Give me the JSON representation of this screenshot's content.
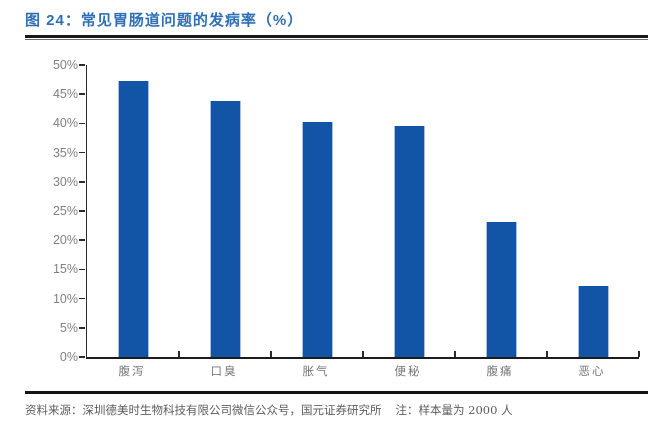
{
  "header": {
    "title": "图 24：常见胃肠道问题的发病率（%）"
  },
  "footer": {
    "source": "资料来源：深圳德美时生物科技有限公司微信公众号，国元证券研究所",
    "note": "注：样本量为 2000 人"
  },
  "colors": {
    "title_blue": "#2f6fb3",
    "bar_blue": "#1254a6",
    "bar_edge": "#aabfdd",
    "axis_dark": "#1c1c1c",
    "tick_label_gray": "#808080",
    "category_label_gray": "#767676",
    "footer_gray": "#5c5c5c"
  },
  "chart_data": {
    "type": "bar",
    "title": "常见胃肠道问题的发病率（%）",
    "categories": [
      "腹泻",
      "口臭",
      "胀气",
      "便秘",
      "腹痛",
      "恶心"
    ],
    "values": [
      47.3,
      43.8,
      40.2,
      39.5,
      23.2,
      12.2
    ],
    "xlabel": "",
    "ylabel": "",
    "ylim": [
      0,
      50
    ],
    "ytick_step": 5,
    "yticks": [
      "50%",
      "45%",
      "40%",
      "35%",
      "30%",
      "25%",
      "20%",
      "15%",
      "10%",
      "5%",
      "0%"
    ],
    "grid": false,
    "legend": "none",
    "bar_color": "#1254a6"
  }
}
